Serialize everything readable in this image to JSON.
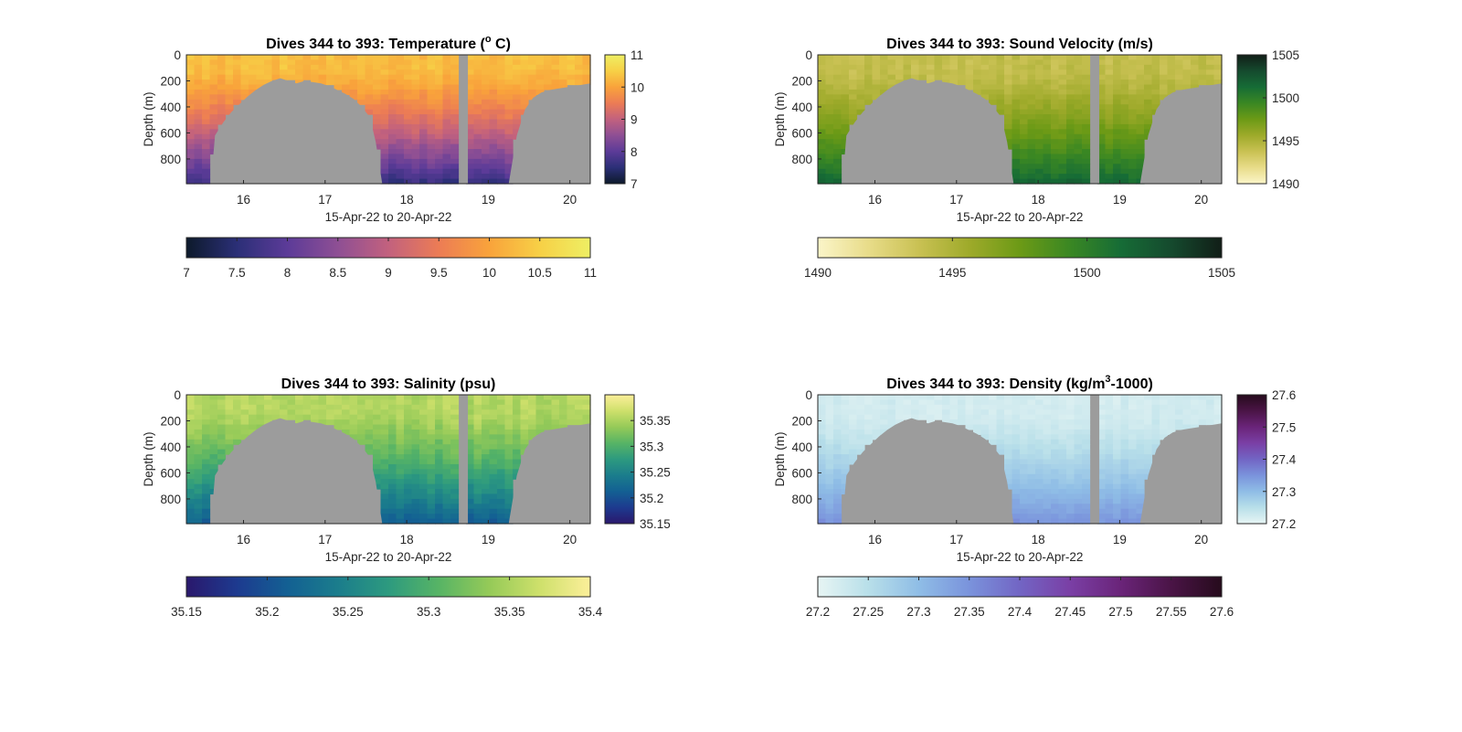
{
  "chart_data": [
    {
      "type": "heatmap",
      "panel": "temperature",
      "title": "Dives 344 to 393: Temperature (",
      "title_sup": "o",
      "title_tail": " C)",
      "xlabel": "15-Apr-22 to 20-Apr-22",
      "ylabel": "Depth (m)",
      "xlim": [
        15.3,
        20.25
      ],
      "ylim": [
        0,
        990
      ],
      "y_reversed": true,
      "xticks": [
        16,
        17,
        18,
        19,
        20
      ],
      "yticks": [
        0,
        200,
        400,
        600,
        800
      ],
      "colorbar": {
        "range": [
          7,
          11
        ],
        "colors": [
          "#0d1a2b",
          "#2b2f77",
          "#5c3b98",
          "#8e4f94",
          "#c2617e",
          "#ec7c55",
          "#f9a33b",
          "#f7d046",
          "#eeef64"
        ],
        "ticks": [
          "11",
          "10",
          "9",
          "8",
          "7"
        ],
        "tick_values": [
          11,
          10,
          9,
          8,
          7
        ]
      },
      "h_colorbar": {
        "ticks": [
          "7",
          "7.5",
          "8",
          "8.5",
          "9",
          "9.5",
          "10",
          "10.5",
          "11"
        ],
        "tick_values": [
          7,
          7.5,
          8,
          8.5,
          9,
          9.5,
          10,
          10.5,
          11
        ]
      },
      "field": {
        "surface": 10.3,
        "deep": 7.6,
        "surface_layer": 300,
        "noise": 0.2
      },
      "gap": {
        "x": [
          18.65,
          18.75
        ],
        "top": 0
      },
      "seabed": "shared"
    },
    {
      "type": "heatmap",
      "panel": "sound-velocity",
      "title": "Dives 344 to 393: Sound Velocity (m/s)",
      "title_sup": "",
      "title_tail": "",
      "xlabel": "15-Apr-22 to 20-Apr-22",
      "ylabel": "Depth (m)",
      "xlim": [
        15.3,
        20.25
      ],
      "ylim": [
        0,
        990
      ],
      "y_reversed": true,
      "xticks": [
        16,
        17,
        18,
        19,
        20
      ],
      "yticks": [
        0,
        200,
        400,
        600,
        800
      ],
      "colorbar": {
        "range": [
          1490,
          1505
        ],
        "colors": [
          "#fbf5c9",
          "#e8dc89",
          "#c9c153",
          "#9eaa2a",
          "#6c9a16",
          "#3a8723",
          "#166c36",
          "#154a2e",
          "#111e17"
        ],
        "ticks": [
          "1505",
          "1500",
          "1495",
          "1490"
        ],
        "tick_values": [
          1505,
          1500,
          1495,
          1490
        ]
      },
      "h_colorbar": {
        "ticks": [
          "1490",
          "1495",
          "1500",
          "1505"
        ],
        "tick_values": [
          1490,
          1495,
          1500,
          1505
        ]
      },
      "field": {
        "surface": 1494.0,
        "deep": 1501.5,
        "surface_layer": 420,
        "noise": 0.7
      },
      "gap": {
        "x": [
          18.65,
          18.75
        ],
        "top": 0
      },
      "seabed": "shared"
    },
    {
      "type": "heatmap",
      "panel": "salinity",
      "title": "Dives 344 to 393: Salinity (psu)",
      "title_sup": "",
      "title_tail": "",
      "xlabel": "15-Apr-22 to 20-Apr-22",
      "ylabel": "Depth (m)",
      "xlim": [
        15.3,
        20.25
      ],
      "ylim": [
        0,
        990
      ],
      "y_reversed": true,
      "xticks": [
        16,
        17,
        18,
        19,
        20
      ],
      "yticks": [
        0,
        200,
        400,
        600,
        800
      ],
      "colorbar": {
        "range": [
          35.15,
          35.4
        ],
        "colors": [
          "#2a186c",
          "#1d3a8f",
          "#136093",
          "#1b7d8c",
          "#2d9a7f",
          "#57b465",
          "#95ca58",
          "#cee06b",
          "#fcef9a"
        ],
        "ticks": [
          "35.35",
          "35.3",
          "35.25",
          "35.2",
          "35.15"
        ],
        "tick_values": [
          35.35,
          35.3,
          35.25,
          35.2,
          35.15
        ]
      },
      "h_colorbar": {
        "ticks": [
          "35.15",
          "35.2",
          "35.25",
          "35.3",
          "35.35",
          "35.4"
        ],
        "tick_values": [
          35.15,
          35.2,
          35.25,
          35.3,
          35.35,
          35.4
        ]
      },
      "field": {
        "surface": 35.355,
        "deep": 35.21,
        "surface_layer": 350,
        "noise": 0.015
      },
      "gap": {
        "x": [
          18.65,
          18.75
        ],
        "top": 0
      },
      "seabed": "shared"
    },
    {
      "type": "heatmap",
      "panel": "density",
      "title": "Dives 344 to 393: Density (kg/m",
      "title_sup": "3",
      "title_tail": "-1000)",
      "xlabel": "15-Apr-22 to 20-Apr-22",
      "ylabel": "Depth (m)",
      "xlim": [
        15.3,
        20.25
      ],
      "ylim": [
        0,
        990
      ],
      "y_reversed": true,
      "xticks": [
        16,
        17,
        18,
        19,
        20
      ],
      "yticks": [
        0,
        200,
        400,
        600,
        800
      ],
      "colorbar": {
        "range": [
          27.2,
          27.6
        ],
        "colors": [
          "#e7f5f4",
          "#b8dfe9",
          "#8fbde6",
          "#7a93dc",
          "#7265c4",
          "#7a3fa5",
          "#6a2479",
          "#4a1446",
          "#260b1c"
        ],
        "ticks": [
          "27.6",
          "27.5",
          "27.4",
          "27.3",
          "27.2"
        ],
        "tick_values": [
          27.6,
          27.5,
          27.4,
          27.3,
          27.2
        ]
      },
      "h_colorbar": {
        "ticks": [
          "27.2",
          "27.25",
          "27.3",
          "27.35",
          "27.4",
          "27.45",
          "27.5",
          "27.55",
          "27.6"
        ],
        "tick_values": [
          27.2,
          27.25,
          27.3,
          27.35,
          27.4,
          27.45,
          27.5,
          27.55,
          27.6
        ]
      },
      "field": {
        "surface": 27.222,
        "deep": 27.35,
        "surface_layer": 500,
        "noise": 0.012
      },
      "gap": {
        "x": [
          18.65,
          18.75
        ],
        "top": 0
      },
      "seabed": "shared"
    }
  ],
  "seabed_profile": {
    "x": [
      15.3,
      15.6,
      15.65,
      15.75,
      15.85,
      15.95,
      16.05,
      16.15,
      16.25,
      16.35,
      16.45,
      16.55,
      16.65,
      16.75,
      16.85,
      16.95,
      17.05,
      17.15,
      17.25,
      17.35,
      17.45,
      17.55,
      17.62,
      17.7,
      18.7,
      18.75,
      19.25,
      19.35,
      19.45,
      19.55,
      19.65,
      19.75,
      19.85,
      19.95,
      20.05,
      20.15,
      20.25
    ],
    "depth": [
      990,
      990,
      620,
      520,
      440,
      380,
      320,
      270,
      230,
      200,
      180,
      200,
      220,
      200,
      210,
      220,
      240,
      270,
      300,
      340,
      400,
      480,
      670,
      990,
      990,
      990,
      990,
      620,
      420,
      330,
      290,
      270,
      260,
      250,
      240,
      230,
      220
    ]
  },
  "colors": {
    "seabed": "#9c9c9c",
    "axis": "#262626"
  }
}
